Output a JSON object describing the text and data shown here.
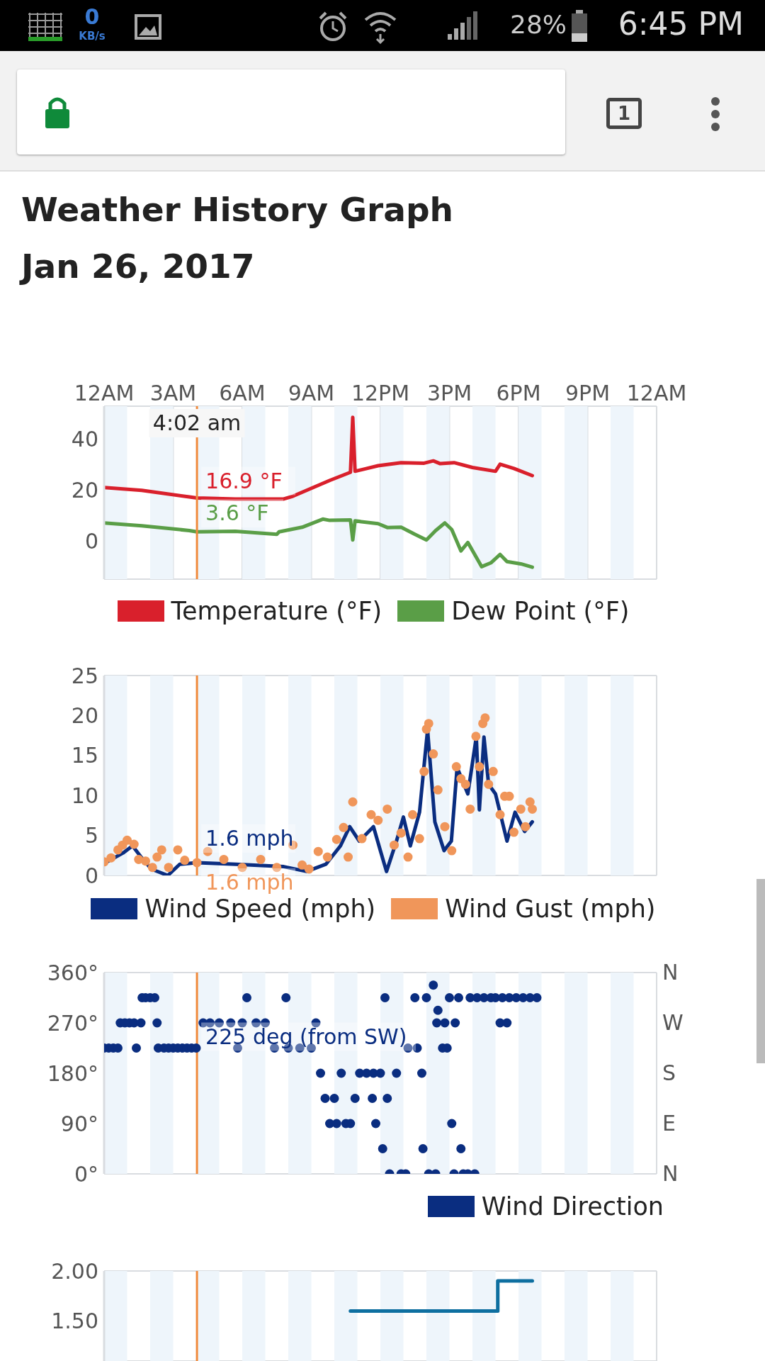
{
  "chart_data": [
    {
      "type": "other",
      "annotations": [
        "0",
        "KB/s",
        "28%",
        "6:45 PM",
        "1"
      ]
    },
    {
      "type": "line",
      "title": "Weather History Graph",
      "subtitle": "Jan 26, 2017",
      "xlim": [
        "2017-01-26T00:00",
        "2017-01-27T00:00"
      ],
      "xticks": [
        {
          "value": "2017-01-26T00:00",
          "label": "12AM"
        },
        {
          "value": "2017-01-26T03:00",
          "label": "3AM"
        },
        {
          "value": "2017-01-26T06:00",
          "label": "6AM"
        },
        {
          "value": "2017-01-26T09:00",
          "label": "9AM"
        },
        {
          "value": "2017-01-26T12:00",
          "label": "12PM"
        },
        {
          "value": "2017-01-26T15:00",
          "label": "3PM"
        },
        {
          "value": "2017-01-26T18:00",
          "label": "6PM"
        },
        {
          "value": "2017-01-26T21:00",
          "label": "9PM"
        },
        {
          "value": "2017-01-27T00:00",
          "label": "12AM"
        }
      ],
      "ylim": [
        -15,
        53
      ],
      "yticks": [
        0,
        20,
        40
      ],
      "grid": true,
      "legend": "bottom",
      "series": [
        {
          "name": "Temperature (°F)",
          "color": "#d9202c",
          "x": [
            "2017-01-26T00:00",
            "2017-01-26T01:38",
            "2017-01-26T03:42",
            "2017-01-26T04:02",
            "2017-01-26T05:42",
            "2017-01-26T07:48",
            "2017-01-26T08:12",
            "2017-01-26T09:48",
            "2017-01-26T10:42",
            "2017-01-26T10:48",
            "2017-01-26T10:54",
            "2017-01-26T11:54",
            "2017-01-26T12:54",
            "2017-01-26T13:54",
            "2017-01-26T14:18",
            "2017-01-26T14:36",
            "2017-01-26T15:12",
            "2017-01-26T16:00",
            "2017-01-26T17:00",
            "2017-01-26T17:12",
            "2017-01-26T17:48",
            "2017-01-26T18:36"
          ],
          "values": [
            21,
            19.9,
            17.3,
            16.9,
            16.5,
            16.5,
            17.6,
            23.8,
            27,
            48.6,
            27.4,
            29.6,
            30.8,
            30.6,
            31.5,
            30.4,
            30.8,
            28.9,
            27.4,
            30.2,
            28.5,
            25.7
          ]
        },
        {
          "name": "Dew Point (°F)",
          "color": "#5a9e47",
          "x": [
            "2017-01-26T00:00",
            "2017-01-26T01:38",
            "2017-01-26T03:42",
            "2017-01-26T04:02",
            "2017-01-26T05:42",
            "2017-01-26T07:30",
            "2017-01-26T07:36",
            "2017-01-26T08:36",
            "2017-01-26T09:30",
            "2017-01-26T09:48",
            "2017-01-26T10:42",
            "2017-01-26T10:48",
            "2017-01-26T10:54",
            "2017-01-26T11:54",
            "2017-01-26T12:18",
            "2017-01-26T12:54",
            "2017-01-26T13:30",
            "2017-01-26T14:00",
            "2017-01-26T14:24",
            "2017-01-26T14:48",
            "2017-01-26T15:06",
            "2017-01-26T15:30",
            "2017-01-26T15:48",
            "2017-01-26T16:24",
            "2017-01-26T16:48",
            "2017-01-26T17:12",
            "2017-01-26T17:30",
            "2017-01-26T18:06",
            "2017-01-26T18:36"
          ],
          "values": [
            7.1,
            6,
            4.1,
            3.6,
            3.8,
            2.6,
            3.6,
            5.4,
            8.6,
            8.1,
            8.3,
            0.4,
            7.9,
            6.8,
            5.3,
            5.4,
            2.6,
            0.4,
            4.1,
            7.1,
            4.5,
            -3.9,
            -0.6,
            -10.1,
            -8.6,
            -5.3,
            -8.1,
            -9,
            -10.3
          ]
        }
      ],
      "ref_lines": [
        {
          "axis": "x",
          "value": "2017-01-26T04:02",
          "label": "4:02 am",
          "color": "#f08a3c"
        }
      ],
      "bands": [
        {
          "axis": "x",
          "from": "2017-01-26T00:00",
          "to": "2017-01-26T01:00",
          "color": "#eef5fb"
        },
        {
          "axis": "x",
          "from": "2017-01-26T02:00",
          "to": "2017-01-26T03:00",
          "color": "#eef5fb"
        },
        {
          "axis": "x",
          "from": "2017-01-26T04:00",
          "to": "2017-01-26T05:00",
          "color": "#eef5fb"
        },
        {
          "axis": "x",
          "from": "2017-01-26T06:00",
          "to": "2017-01-26T07:00",
          "color": "#eef5fb"
        },
        {
          "axis": "x",
          "from": "2017-01-26T08:00",
          "to": "2017-01-26T09:00",
          "color": "#eef5fb"
        },
        {
          "axis": "x",
          "from": "2017-01-26T10:00",
          "to": "2017-01-26T11:00",
          "color": "#eef5fb"
        },
        {
          "axis": "x",
          "from": "2017-01-26T12:00",
          "to": "2017-01-26T13:00",
          "color": "#eef5fb"
        },
        {
          "axis": "x",
          "from": "2017-01-26T14:00",
          "to": "2017-01-26T15:00",
          "color": "#eef5fb"
        },
        {
          "axis": "x",
          "from": "2017-01-26T16:00",
          "to": "2017-01-26T17:00",
          "color": "#eef5fb"
        },
        {
          "axis": "x",
          "from": "2017-01-26T18:00",
          "to": "2017-01-26T19:00",
          "color": "#eef5fb"
        },
        {
          "axis": "x",
          "from": "2017-01-26T20:00",
          "to": "2017-01-26T21:00",
          "color": "#eef5fb"
        },
        {
          "axis": "x",
          "from": "2017-01-26T22:00",
          "to": "2017-01-26T23:00",
          "color": "#eef5fb"
        }
      ],
      "annotations": [
        {
          "text": "16.9 °F",
          "x": "2017-01-26T04:02",
          "y": 16.9
        },
        {
          "text": "3.6 °F",
          "x": "2017-01-26T04:02",
          "y": 3.6
        }
      ]
    },
    {
      "type": "line",
      "xlim": [
        "2017-01-26T00:00",
        "2017-01-27T00:00"
      ],
      "ylim": [
        0,
        25
      ],
      "yticks": [
        0,
        5,
        10,
        15,
        20,
        25
      ],
      "grid": true,
      "legend": "bottom",
      "tick_labels": "y",
      "series": [
        {
          "name": "Wind Speed (mph)",
          "color": "#0a2d80",
          "x": [
            "2017-01-26T00:00",
            "2017-01-26T00:49",
            "2017-01-26T01:14",
            "2017-01-26T01:38",
            "2017-01-26T02:03",
            "2017-01-26T02:46",
            "2017-01-26T03:17",
            "2017-01-26T04:02",
            "2017-01-26T05:44",
            "2017-01-26T07:48",
            "2017-01-26T08:48",
            "2017-01-26T09:38",
            "2017-01-26T10:16",
            "2017-01-26T10:40",
            "2017-01-26T11:05",
            "2017-01-26T11:42",
            "2017-01-26T12:00",
            "2017-01-26T12:16",
            "2017-01-26T12:42",
            "2017-01-26T13:00",
            "2017-01-26T13:18",
            "2017-01-26T13:42",
            "2017-01-26T14:03",
            "2017-01-26T14:22",
            "2017-01-26T14:46",
            "2017-01-26T15:05",
            "2017-01-26T15:20",
            "2017-01-26T15:48",
            "2017-01-26T16:10",
            "2017-01-26T16:18",
            "2017-01-26T16:30",
            "2017-01-26T16:42",
            "2017-01-26T17:00",
            "2017-01-26T17:30",
            "2017-01-26T17:51",
            "2017-01-26T18:16",
            "2017-01-26T18:36"
          ],
          "values": [
            1.5,
            2.8,
            3.7,
            2.2,
            0.8,
            0,
            1.4,
            1.6,
            1.4,
            1.1,
            0.5,
            1.4,
            3.7,
            6.1,
            4.3,
            6.1,
            3.1,
            0.5,
            4.3,
            7.3,
            3.7,
            7.9,
            18.2,
            6.7,
            3.1,
            4.3,
            13.5,
            10.2,
            17.3,
            8.2,
            17.3,
            11.4,
            10.2,
            4.3,
            7.9,
            5.5,
            6.7
          ]
        },
        {
          "name": "Wind Gust (mph)",
          "type": "scatter",
          "marker": "circle",
          "color": "#f0965a",
          "x": [
            "2017-01-26T00:00",
            "2017-01-26T00:18",
            "2017-01-26T00:36",
            "2017-01-26T00:48",
            "2017-01-26T01:00",
            "2017-01-26T01:18",
            "2017-01-26T01:30",
            "2017-01-26T01:48",
            "2017-01-26T02:06",
            "2017-01-26T02:18",
            "2017-01-26T02:30",
            "2017-01-26T02:48",
            "2017-01-26T03:12",
            "2017-01-26T03:30",
            "2017-01-26T04:02",
            "2017-01-26T04:30",
            "2017-01-26T05:12",
            "2017-01-26T06:00",
            "2017-01-26T06:48",
            "2017-01-26T07:30",
            "2017-01-26T08:12",
            "2017-01-26T08:36",
            "2017-01-26T08:54",
            "2017-01-26T09:18",
            "2017-01-26T09:42",
            "2017-01-26T10:06",
            "2017-01-26T10:24",
            "2017-01-26T10:36",
            "2017-01-26T10:48",
            "2017-01-26T11:12",
            "2017-01-26T11:36",
            "2017-01-26T11:54",
            "2017-01-26T12:18",
            "2017-01-26T12:36",
            "2017-01-26T12:54",
            "2017-01-26T13:12",
            "2017-01-26T13:24",
            "2017-01-26T13:42",
            "2017-01-26T13:54",
            "2017-01-26T14:00",
            "2017-01-26T14:06",
            "2017-01-26T14:18",
            "2017-01-26T14:30",
            "2017-01-26T14:48",
            "2017-01-26T15:06",
            "2017-01-26T15:18",
            "2017-01-26T15:30",
            "2017-01-26T15:42",
            "2017-01-26T15:54",
            "2017-01-26T16:09",
            "2017-01-26T16:18",
            "2017-01-26T16:27",
            "2017-01-26T16:33",
            "2017-01-26T16:42",
            "2017-01-26T16:54",
            "2017-01-26T17:12",
            "2017-01-26T17:24",
            "2017-01-26T17:36",
            "2017-01-26T17:48",
            "2017-01-26T18:06",
            "2017-01-26T18:18",
            "2017-01-26T18:30",
            "2017-01-26T18:36"
          ],
          "values": [
            1.7,
            2.2,
            3.2,
            3.8,
            4.4,
            3.9,
            2,
            1.8,
            1,
            2.3,
            3.2,
            1,
            3.2,
            1.9,
            1.6,
            3,
            2,
            1,
            2,
            1,
            3.8,
            1.3,
            0.8,
            3,
            2.3,
            4.5,
            6,
            2.3,
            9.2,
            4.6,
            7.6,
            6.9,
            8.3,
            3.8,
            5.3,
            2.3,
            7.6,
            4.6,
            13,
            18.3,
            19,
            15.2,
            10.7,
            6.1,
            3.1,
            13.6,
            12.1,
            11.4,
            8.3,
            17.4,
            13.6,
            19,
            19.7,
            11.4,
            13,
            7.6,
            9.9,
            9.9,
            5.4,
            8.3,
            6.1,
            9.2,
            8.3
          ]
        }
      ],
      "ref_lines": [
        {
          "axis": "x",
          "value": "2017-01-26T04:02",
          "color": "#f08a3c"
        }
      ],
      "bands": [
        {
          "axis": "x",
          "from": "2017-01-26T00:00",
          "to": "2017-01-26T01:00",
          "color": "#eef5fb"
        },
        {
          "axis": "x",
          "from": "2017-01-26T02:00",
          "to": "2017-01-26T03:00",
          "color": "#eef5fb"
        },
        {
          "axis": "x",
          "from": "2017-01-26T04:00",
          "to": "2017-01-26T05:00",
          "color": "#eef5fb"
        },
        {
          "axis": "x",
          "from": "2017-01-26T06:00",
          "to": "2017-01-26T07:00",
          "color": "#eef5fb"
        },
        {
          "axis": "x",
          "from": "2017-01-26T08:00",
          "to": "2017-01-26T09:00",
          "color": "#eef5fb"
        },
        {
          "axis": "x",
          "from": "2017-01-26T10:00",
          "to": "2017-01-26T11:00",
          "color": "#eef5fb"
        },
        {
          "axis": "x",
          "from": "2017-01-26T12:00",
          "to": "2017-01-26T13:00",
          "color": "#eef5fb"
        },
        {
          "axis": "x",
          "from": "2017-01-26T14:00",
          "to": "2017-01-26T15:00",
          "color": "#eef5fb"
        },
        {
          "axis": "x",
          "from": "2017-01-26T16:00",
          "to": "2017-01-26T17:00",
          "color": "#eef5fb"
        },
        {
          "axis": "x",
          "from": "2017-01-26T18:00",
          "to": "2017-01-26T19:00",
          "color": "#eef5fb"
        },
        {
          "axis": "x",
          "from": "2017-01-26T20:00",
          "to": "2017-01-26T21:00",
          "color": "#eef5fb"
        },
        {
          "axis": "x",
          "from": "2017-01-26T22:00",
          "to": "2017-01-26T23:00",
          "color": "#eef5fb"
        }
      ],
      "annotations": [
        {
          "text": "1.6 mph",
          "x": "2017-01-26T04:02",
          "y": 1.6
        },
        {
          "text": "1.6 mph",
          "x": "2017-01-26T04:02",
          "y": 1.6
        }
      ]
    },
    {
      "type": "scatter",
      "marker": "circle",
      "xlim": [
        "2017-01-26T00:00",
        "2017-01-27T00:00"
      ],
      "ylim": [
        0,
        360
      ],
      "yticks": [
        {
          "value": 0,
          "label": "0°"
        },
        {
          "value": 90,
          "label": "90°"
        },
        {
          "value": 180,
          "label": "180°"
        },
        {
          "value": 270,
          "label": "270°"
        },
        {
          "value": 360,
          "label": "360°"
        }
      ],
      "grid": true,
      "legend": "bottom right",
      "tick_labels": "y",
      "series": [
        {
          "name": "Wind Direction",
          "color": "#0a2d80",
          "x": [
            "2017-01-26T00:00",
            "2017-01-26T00:12",
            "2017-01-26T00:24",
            "2017-01-26T00:36",
            "2017-01-26T00:42",
            "2017-01-26T00:54",
            "2017-01-26T01:06",
            "2017-01-26T01:18",
            "2017-01-26T01:24",
            "2017-01-26T01:36",
            "2017-01-26T01:39",
            "2017-01-26T01:48",
            "2017-01-26T02:00",
            "2017-01-26T02:12",
            "2017-01-26T02:18",
            "2017-01-26T02:21",
            "2017-01-26T02:36",
            "2017-01-26T02:48",
            "2017-01-26T03:00",
            "2017-01-26T03:12",
            "2017-01-26T03:24",
            "2017-01-26T03:36",
            "2017-01-26T03:48",
            "2017-01-26T04:00",
            "2017-01-26T04:18",
            "2017-01-26T04:36",
            "2017-01-26T05:00",
            "2017-01-26T05:30",
            "2017-01-26T05:48",
            "2017-01-26T06:00",
            "2017-01-26T06:12",
            "2017-01-26T06:36",
            "2017-01-26T07:00",
            "2017-01-26T07:24",
            "2017-01-26T07:54",
            "2017-01-26T08:00",
            "2017-01-26T08:30",
            "2017-01-26T09:00",
            "2017-01-26T09:12",
            "2017-01-26T09:24",
            "2017-01-26T09:36",
            "2017-01-26T09:48",
            "2017-01-26T10:00",
            "2017-01-26T10:06",
            "2017-01-26T10:18",
            "2017-01-26T10:30",
            "2017-01-26T10:42",
            "2017-01-26T10:54",
            "2017-01-26T11:06",
            "2017-01-26T11:24",
            "2017-01-26T11:39",
            "2017-01-26T11:42",
            "2017-01-26T11:48",
            "2017-01-26T12:00",
            "2017-01-26T12:06",
            "2017-01-26T12:12",
            "2017-01-26T12:18",
            "2017-01-26T12:24",
            "2017-01-26T12:42",
            "2017-01-26T12:54",
            "2017-01-26T13:06",
            "2017-01-26T13:12",
            "2017-01-26T13:30",
            "2017-01-26T13:36",
            "2017-01-26T13:48",
            "2017-01-26T13:51",
            "2017-01-26T14:00",
            "2017-01-26T14:06",
            "2017-01-26T14:18",
            "2017-01-26T14:24",
            "2017-01-26T14:27",
            "2017-01-26T14:30",
            "2017-01-26T14:42",
            "2017-01-26T14:48",
            "2017-01-26T14:54",
            "2017-01-26T15:00",
            "2017-01-26T15:06",
            "2017-01-26T15:12",
            "2017-01-26T15:15",
            "2017-01-26T15:24",
            "2017-01-26T15:30",
            "2017-01-26T15:36",
            "2017-01-26T15:48",
            "2017-01-26T15:54",
            "2017-01-26T16:06",
            "2017-01-26T16:12",
            "2017-01-26T16:30",
            "2017-01-26T16:48",
            "2017-01-26T17:00",
            "2017-01-26T17:12",
            "2017-01-26T17:18",
            "2017-01-26T17:30",
            "2017-01-26T17:36",
            "2017-01-26T17:54",
            "2017-01-26T18:12",
            "2017-01-26T18:30",
            "2017-01-26T18:48"
          ],
          "values": [
            225,
            225,
            225,
            225,
            270,
            270,
            270,
            270,
            225,
            270,
            315,
            315,
            315,
            315,
            270,
            225,
            225,
            225,
            225,
            225,
            225,
            225,
            225,
            225,
            270,
            270,
            270,
            270,
            225,
            270,
            315,
            270,
            270,
            225,
            315,
            225,
            225,
            225,
            270,
            180,
            135,
            90,
            135,
            90,
            180,
            90,
            90,
            135,
            180,
            180,
            135,
            180,
            90,
            180,
            45,
            315,
            135,
            0,
            180,
            0,
            0,
            225,
            315,
            225,
            180,
            45,
            315,
            0,
            337.5,
            0,
            270,
            292.5,
            225,
            270,
            225,
            315,
            90,
            0,
            270,
            315,
            45,
            0,
            0,
            315,
            0,
            315,
            315,
            315,
            315,
            270,
            315,
            270,
            315,
            315,
            315,
            315,
            315
          ]
        }
      ],
      "ref_lines": [
        {
          "axis": "x",
          "value": "2017-01-26T04:02",
          "color": "#f08a3c"
        }
      ],
      "bands": [
        {
          "axis": "x",
          "from": "2017-01-26T00:00",
          "to": "2017-01-26T01:00",
          "color": "#eef5fb"
        },
        {
          "axis": "x",
          "from": "2017-01-26T02:00",
          "to": "2017-01-26T03:00",
          "color": "#eef5fb"
        },
        {
          "axis": "x",
          "from": "2017-01-26T04:00",
          "to": "2017-01-26T05:00",
          "color": "#eef5fb"
        },
        {
          "axis": "x",
          "from": "2017-01-26T06:00",
          "to": "2017-01-26T07:00",
          "color": "#eef5fb"
        },
        {
          "axis": "x",
          "from": "2017-01-26T08:00",
          "to": "2017-01-26T09:00",
          "color": "#eef5fb"
        },
        {
          "axis": "x",
          "from": "2017-01-26T10:00",
          "to": "2017-01-26T11:00",
          "color": "#eef5fb"
        },
        {
          "axis": "x",
          "from": "2017-01-26T12:00",
          "to": "2017-01-26T13:00",
          "color": "#eef5fb"
        },
        {
          "axis": "x",
          "from": "2017-01-26T14:00",
          "to": "2017-01-26T15:00",
          "color": "#eef5fb"
        },
        {
          "axis": "x",
          "from": "2017-01-26T16:00",
          "to": "2017-01-26T17:00",
          "color": "#eef5fb"
        },
        {
          "axis": "x",
          "from": "2017-01-26T18:00",
          "to": "2017-01-26T19:00",
          "color": "#eef5fb"
        },
        {
          "axis": "x",
          "from": "2017-01-26T20:00",
          "to": "2017-01-26T21:00",
          "color": "#eef5fb"
        },
        {
          "axis": "x",
          "from": "2017-01-26T22:00",
          "to": "2017-01-26T23:00",
          "color": "#eef5fb"
        }
      ],
      "annotations": [
        {
          "text": "225 deg (from SW)",
          "x": "2017-01-26T04:02",
          "y": 225
        },
        "N",
        "E",
        "S",
        "W",
        "N"
      ]
    },
    {
      "type": "step",
      "xlim": [
        "2017-01-26T00:00",
        "2017-01-27T00:00"
      ],
      "ylim": [
        1.1,
        2
      ],
      "yticks": [
        {
          "value": 1.5,
          "label": "1.50"
        },
        {
          "value": 2,
          "label": "2.00"
        }
      ],
      "grid": true,
      "tick_labels": "y",
      "series": [
        {
          "color": "#0e6fa0",
          "x": [
            "2017-01-26T10:42",
            "2017-01-26T17:06",
            "2017-01-26T18:36"
          ],
          "values": [
            1.6,
            1.9,
            1.9
          ]
        }
      ],
      "ref_lines": [
        {
          "axis": "x",
          "value": "2017-01-26T04:02",
          "color": "#f08a3c"
        }
      ],
      "bands": [
        {
          "axis": "x",
          "from": "2017-01-26T00:00",
          "to": "2017-01-26T01:00",
          "color": "#eef5fb"
        },
        {
          "axis": "x",
          "from": "2017-01-26T02:00",
          "to": "2017-01-26T03:00",
          "color": "#eef5fb"
        },
        {
          "axis": "x",
          "from": "2017-01-26T04:00",
          "to": "2017-01-26T05:00",
          "color": "#eef5fb"
        },
        {
          "axis": "x",
          "from": "2017-01-26T06:00",
          "to": "2017-01-26T07:00",
          "color": "#eef5fb"
        },
        {
          "axis": "x",
          "from": "2017-01-26T08:00",
          "to": "2017-01-26T09:00",
          "color": "#eef5fb"
        },
        {
          "axis": "x",
          "from": "2017-01-26T10:00",
          "to": "2017-01-26T11:00",
          "color": "#eef5fb"
        },
        {
          "axis": "x",
          "from": "2017-01-26T12:00",
          "to": "2017-01-26T13:00",
          "color": "#eef5fb"
        },
        {
          "axis": "x",
          "from": "2017-01-26T14:00",
          "to": "2017-01-26T15:00",
          "color": "#eef5fb"
        },
        {
          "axis": "x",
          "from": "2017-01-26T16:00",
          "to": "2017-01-26T17:00",
          "color": "#eef5fb"
        },
        {
          "axis": "x",
          "from": "2017-01-26T18:00",
          "to": "2017-01-26T19:00",
          "color": "#eef5fb"
        },
        {
          "axis": "x",
          "from": "2017-01-26T20:00",
          "to": "2017-01-26T21:00",
          "color": "#eef5fb"
        },
        {
          "axis": "x",
          "from": "2017-01-26T22:00",
          "to": "2017-01-26T23:00",
          "color": "#eef5fb"
        }
      ]
    }
  ]
}
